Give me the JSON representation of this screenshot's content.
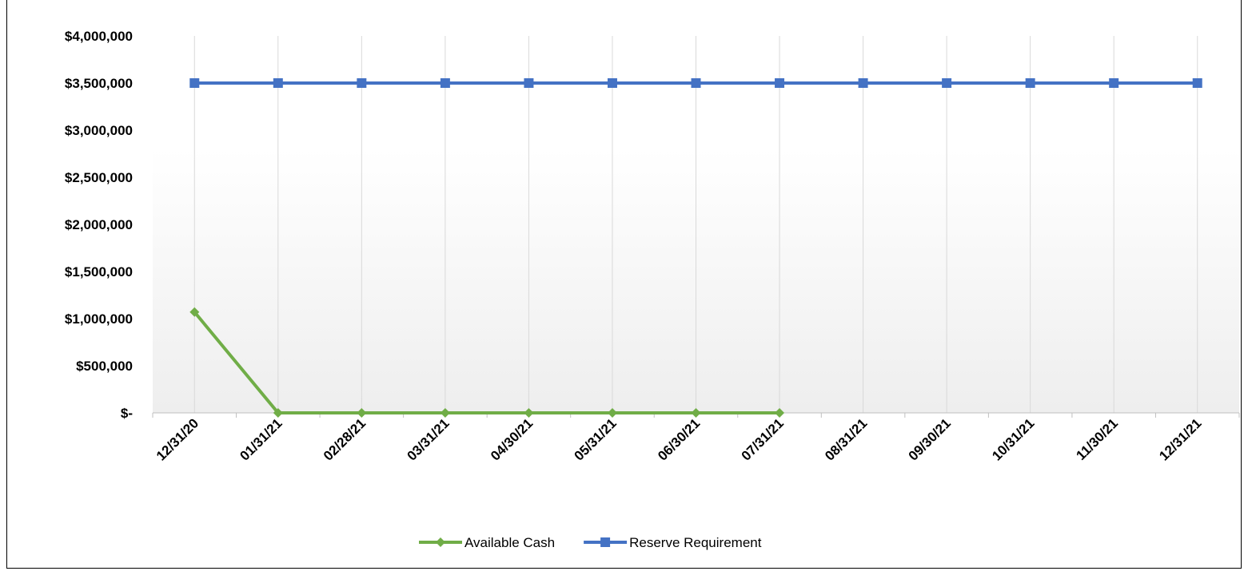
{
  "chart_data": {
    "type": "line",
    "title": "",
    "xlabel": "",
    "ylabel": "",
    "categories": [
      "12/31/20",
      "01/31/21",
      "02/28/21",
      "03/31/21",
      "04/30/21",
      "05/31/21",
      "06/30/21",
      "07/31/21",
      "08/31/21",
      "09/30/21",
      "10/31/21",
      "11/30/21",
      "12/31/21"
    ],
    "ylim": [
      0,
      4000000
    ],
    "y_ticks": [
      0,
      500000,
      1000000,
      1500000,
      2000000,
      2500000,
      3000000,
      3500000,
      4000000
    ],
    "y_tick_labels": [
      "$-",
      "$500,000",
      "$1,000,000",
      "$1,500,000",
      "$2,000,000",
      "$2,500,000",
      "$3,000,000",
      "$3,500,000",
      "$4,000,000"
    ],
    "grid": "vertical",
    "legend_position": "bottom",
    "series": [
      {
        "name": "Available Cash",
        "color": "#70ad47",
        "marker": "diamond",
        "values": [
          1070000,
          0,
          0,
          0,
          0,
          0,
          0,
          0,
          null,
          null,
          null,
          null,
          null
        ]
      },
      {
        "name": "Reserve Requirement",
        "color": "#4472c4",
        "marker": "square",
        "values": [
          3500000,
          3500000,
          3500000,
          3500000,
          3500000,
          3500000,
          3500000,
          3500000,
          3500000,
          3500000,
          3500000,
          3500000,
          3500000
        ]
      }
    ]
  }
}
